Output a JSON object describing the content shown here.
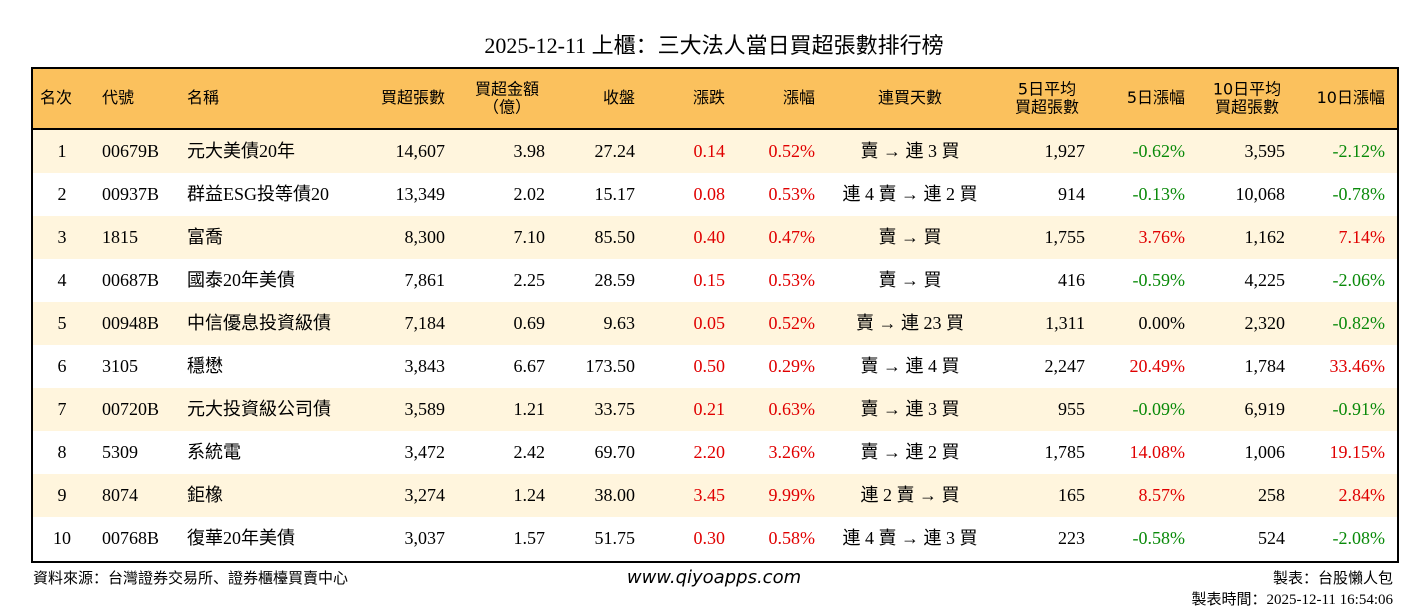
{
  "title": "2025-12-11 上櫃：三大法人當日買超張數排行榜",
  "table": {
    "header": [
      [
        "名次"
      ],
      [
        "代號"
      ],
      [
        "名稱"
      ],
      [
        "買超張數"
      ],
      [
        "買超金額",
        "（億）"
      ],
      [
        "收盤"
      ],
      [
        "漲跌"
      ],
      [
        "漲幅"
      ],
      [
        "連買天數"
      ],
      [
        "5日平均",
        "買超張數"
      ],
      [
        "5日漲幅"
      ],
      [
        "10日平均",
        "買超張數"
      ],
      [
        "10日漲幅"
      ]
    ],
    "rows": [
      [
        "1",
        "00679B",
        "元大美債20年",
        "14,607",
        "3.98",
        "27.24",
        "0.14",
        "0.52%",
        "賣 → 連 3 買",
        "1,927",
        "-0.62%",
        "3,595",
        "-2.12%"
      ],
      [
        "2",
        "00937B",
        "群益ESG投等債20",
        "13,349",
        "2.02",
        "15.17",
        "0.08",
        "0.53%",
        "連 4 賣 → 連 2 買",
        "914",
        "-0.13%",
        "10,068",
        "-0.78%"
      ],
      [
        "3",
        "1815",
        "富喬",
        "8,300",
        "7.10",
        "85.50",
        "0.40",
        "0.47%",
        "賣 → 買",
        "1,755",
        "3.76%",
        "1,162",
        "7.14%"
      ],
      [
        "4",
        "00687B",
        "國泰20年美債",
        "7,861",
        "2.25",
        "28.59",
        "0.15",
        "0.53%",
        "賣 → 買",
        "416",
        "-0.59%",
        "4,225",
        "-2.06%"
      ],
      [
        "5",
        "00948B",
        "中信優息投資級債",
        "7,184",
        "0.69",
        "9.63",
        "0.05",
        "0.52%",
        "賣 → 連 23 買",
        "1,311",
        "0.00%",
        "2,320",
        "-0.82%"
      ],
      [
        "6",
        "3105",
        "穩懋",
        "3,843",
        "6.67",
        "173.50",
        "0.50",
        "0.29%",
        "賣 → 連 4 買",
        "2,247",
        "20.49%",
        "1,784",
        "33.46%"
      ],
      [
        "7",
        "00720B",
        "元大投資級公司債",
        "3,589",
        "1.21",
        "33.75",
        "0.21",
        "0.63%",
        "賣 → 連 3 買",
        "955",
        "-0.09%",
        "6,919",
        "-0.91%"
      ],
      [
        "8",
        "5309",
        "系統電",
        "3,472",
        "2.42",
        "69.70",
        "2.20",
        "3.26%",
        "賣 → 連 2 買",
        "1,785",
        "14.08%",
        "1,006",
        "19.15%"
      ],
      [
        "9",
        "8074",
        "鉅橡",
        "3,274",
        "1.24",
        "38.00",
        "3.45",
        "9.99%",
        "連 2 賣 → 買",
        "165",
        "8.57%",
        "258",
        "2.84%"
      ],
      [
        "10",
        "00768B",
        "復華20年美債",
        "3,037",
        "1.57",
        "51.75",
        "0.30",
        "0.58%",
        "連 4 賣 → 連 3 買",
        "223",
        "-0.58%",
        "524",
        "-2.08%"
      ]
    ]
  },
  "footer": {
    "source": "資料來源：台灣證券交易所、證券櫃檯買賣中心",
    "site": "www.qiyoapps.com",
    "maker": "製表：台股懶人包",
    "time": "製表時間：2025-12-11 16:54:06"
  }
}
